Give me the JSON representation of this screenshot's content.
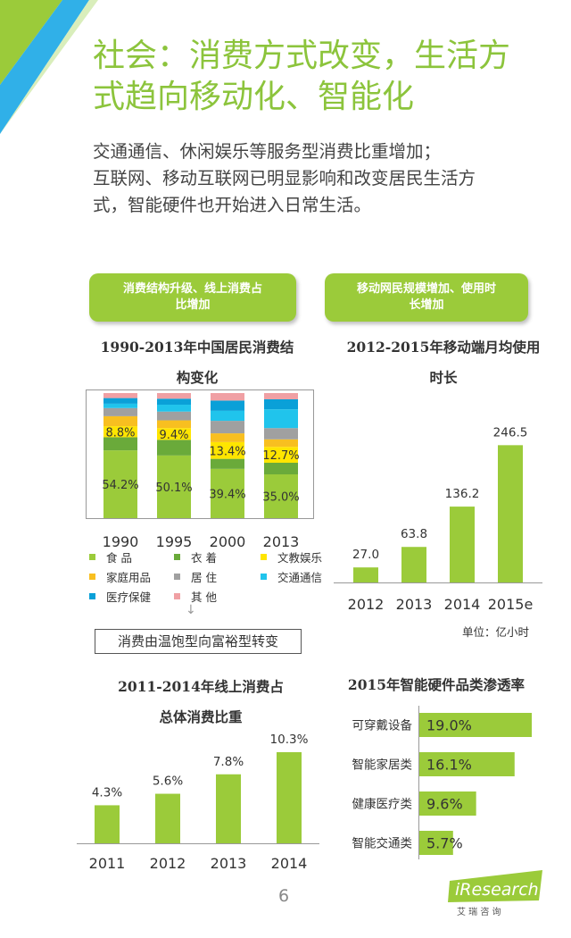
{
  "title_line1": "社会：消费方式改变，生活方",
  "title_line2": "式趋向移动化、智能化",
  "intro": [
    "交通通信、休闲娱乐等服务型消费比重增加；",
    "互联网、移动互联网已明显影响和改变居民生活方",
    "式，智能硬件也开始进入日常生活。"
  ],
  "pill_left_lines": [
    "消费结构升级、线上消费占",
    "比增加"
  ],
  "pill_right_lines": [
    "移动网民规模增加、使用时",
    "长增加"
  ],
  "shift_note": "消费由温饱型向富裕型转变",
  "arrow_glyph": "↓",
  "unit_label": "单位：亿小时",
  "page_number": "6",
  "logo_text": "iResearch",
  "logo_sub": "艾 瑞 咨 询",
  "colors": {
    "green": "#9bcb3a",
    "title_green": "#8cc43c",
    "deco_blue": "#30b0e8"
  },
  "chart_data": [
    {
      "type": "bar",
      "stacked": true,
      "title_lines": [
        "1990-2013年中国居民消费结",
        "构变化"
      ],
      "categories": [
        "1990",
        "1995",
        "2000",
        "2013"
      ],
      "series": [
        {
          "name": "食 品",
          "color": "#9bcb3a",
          "values": [
            54.2,
            50.1,
            39.4,
            35.0
          ],
          "labels": [
            "54.2%",
            "50.1%",
            "39.4%",
            "35.0%"
          ]
        },
        {
          "name": "衣 着",
          "color": "#6aaa3a",
          "values": [
            10.5,
            12.5,
            8.0,
            9.3
          ]
        },
        {
          "name": "文教娱乐",
          "color": "#ffe500",
          "values": [
            8.8,
            9.4,
            13.4,
            12.7
          ],
          "labels": [
            "8.8%",
            "9.4%",
            "13.4%",
            "12.7%"
          ]
        },
        {
          "name": "家庭用品",
          "color": "#f8bf20",
          "values": [
            8.0,
            6.2,
            7.0,
            6.0
          ]
        },
        {
          "name": "居 住",
          "color": "#a0a0a0",
          "values": [
            6.5,
            7.0,
            10.0,
            9.0
          ]
        },
        {
          "name": "交通通信",
          "color": "#20c4ec",
          "values": [
            3.5,
            5.5,
            8.0,
            15.0
          ]
        },
        {
          "name": "医疗保健",
          "color": "#0aa0d8",
          "values": [
            4.5,
            4.8,
            8.2,
            8.0
          ]
        },
        {
          "name": "其 他",
          "color": "#f0a0a4",
          "values": [
            4.0,
            4.5,
            6.0,
            5.0
          ]
        }
      ],
      "ylim": [
        0,
        100
      ]
    },
    {
      "type": "bar",
      "title_lines": [
        "2012-2015年移动端月均使用",
        "时长"
      ],
      "categories": [
        "2012",
        "2013",
        "2014",
        "2015e"
      ],
      "values": [
        27.0,
        63.8,
        136.2,
        246.5
      ],
      "labels": [
        "27.0",
        "63.8",
        "136.2",
        "246.5"
      ],
      "color": "#9bcb3a"
    },
    {
      "type": "bar",
      "title_lines": [
        "2011-2014年线上消费占",
        "总体消费比重"
      ],
      "categories": [
        "2011",
        "2012",
        "2013",
        "2014"
      ],
      "values": [
        4.3,
        5.6,
        7.8,
        10.3
      ],
      "labels": [
        "4.3%",
        "5.6%",
        "7.8%",
        "10.3%"
      ],
      "color": "#9bcb3a"
    },
    {
      "type": "bar",
      "orientation": "horizontal",
      "title_lines": [
        "2015年智能硬件品类渗透率"
      ],
      "categories": [
        "可穿戴设备",
        "智能家居类",
        "健康医疗类",
        "智能交通类"
      ],
      "values": [
        19.0,
        16.1,
        9.6,
        5.7
      ],
      "labels": [
        "19.0%",
        "16.1%",
        "9.6%",
        "5.7%"
      ],
      "color": "#9bcb3a"
    }
  ]
}
